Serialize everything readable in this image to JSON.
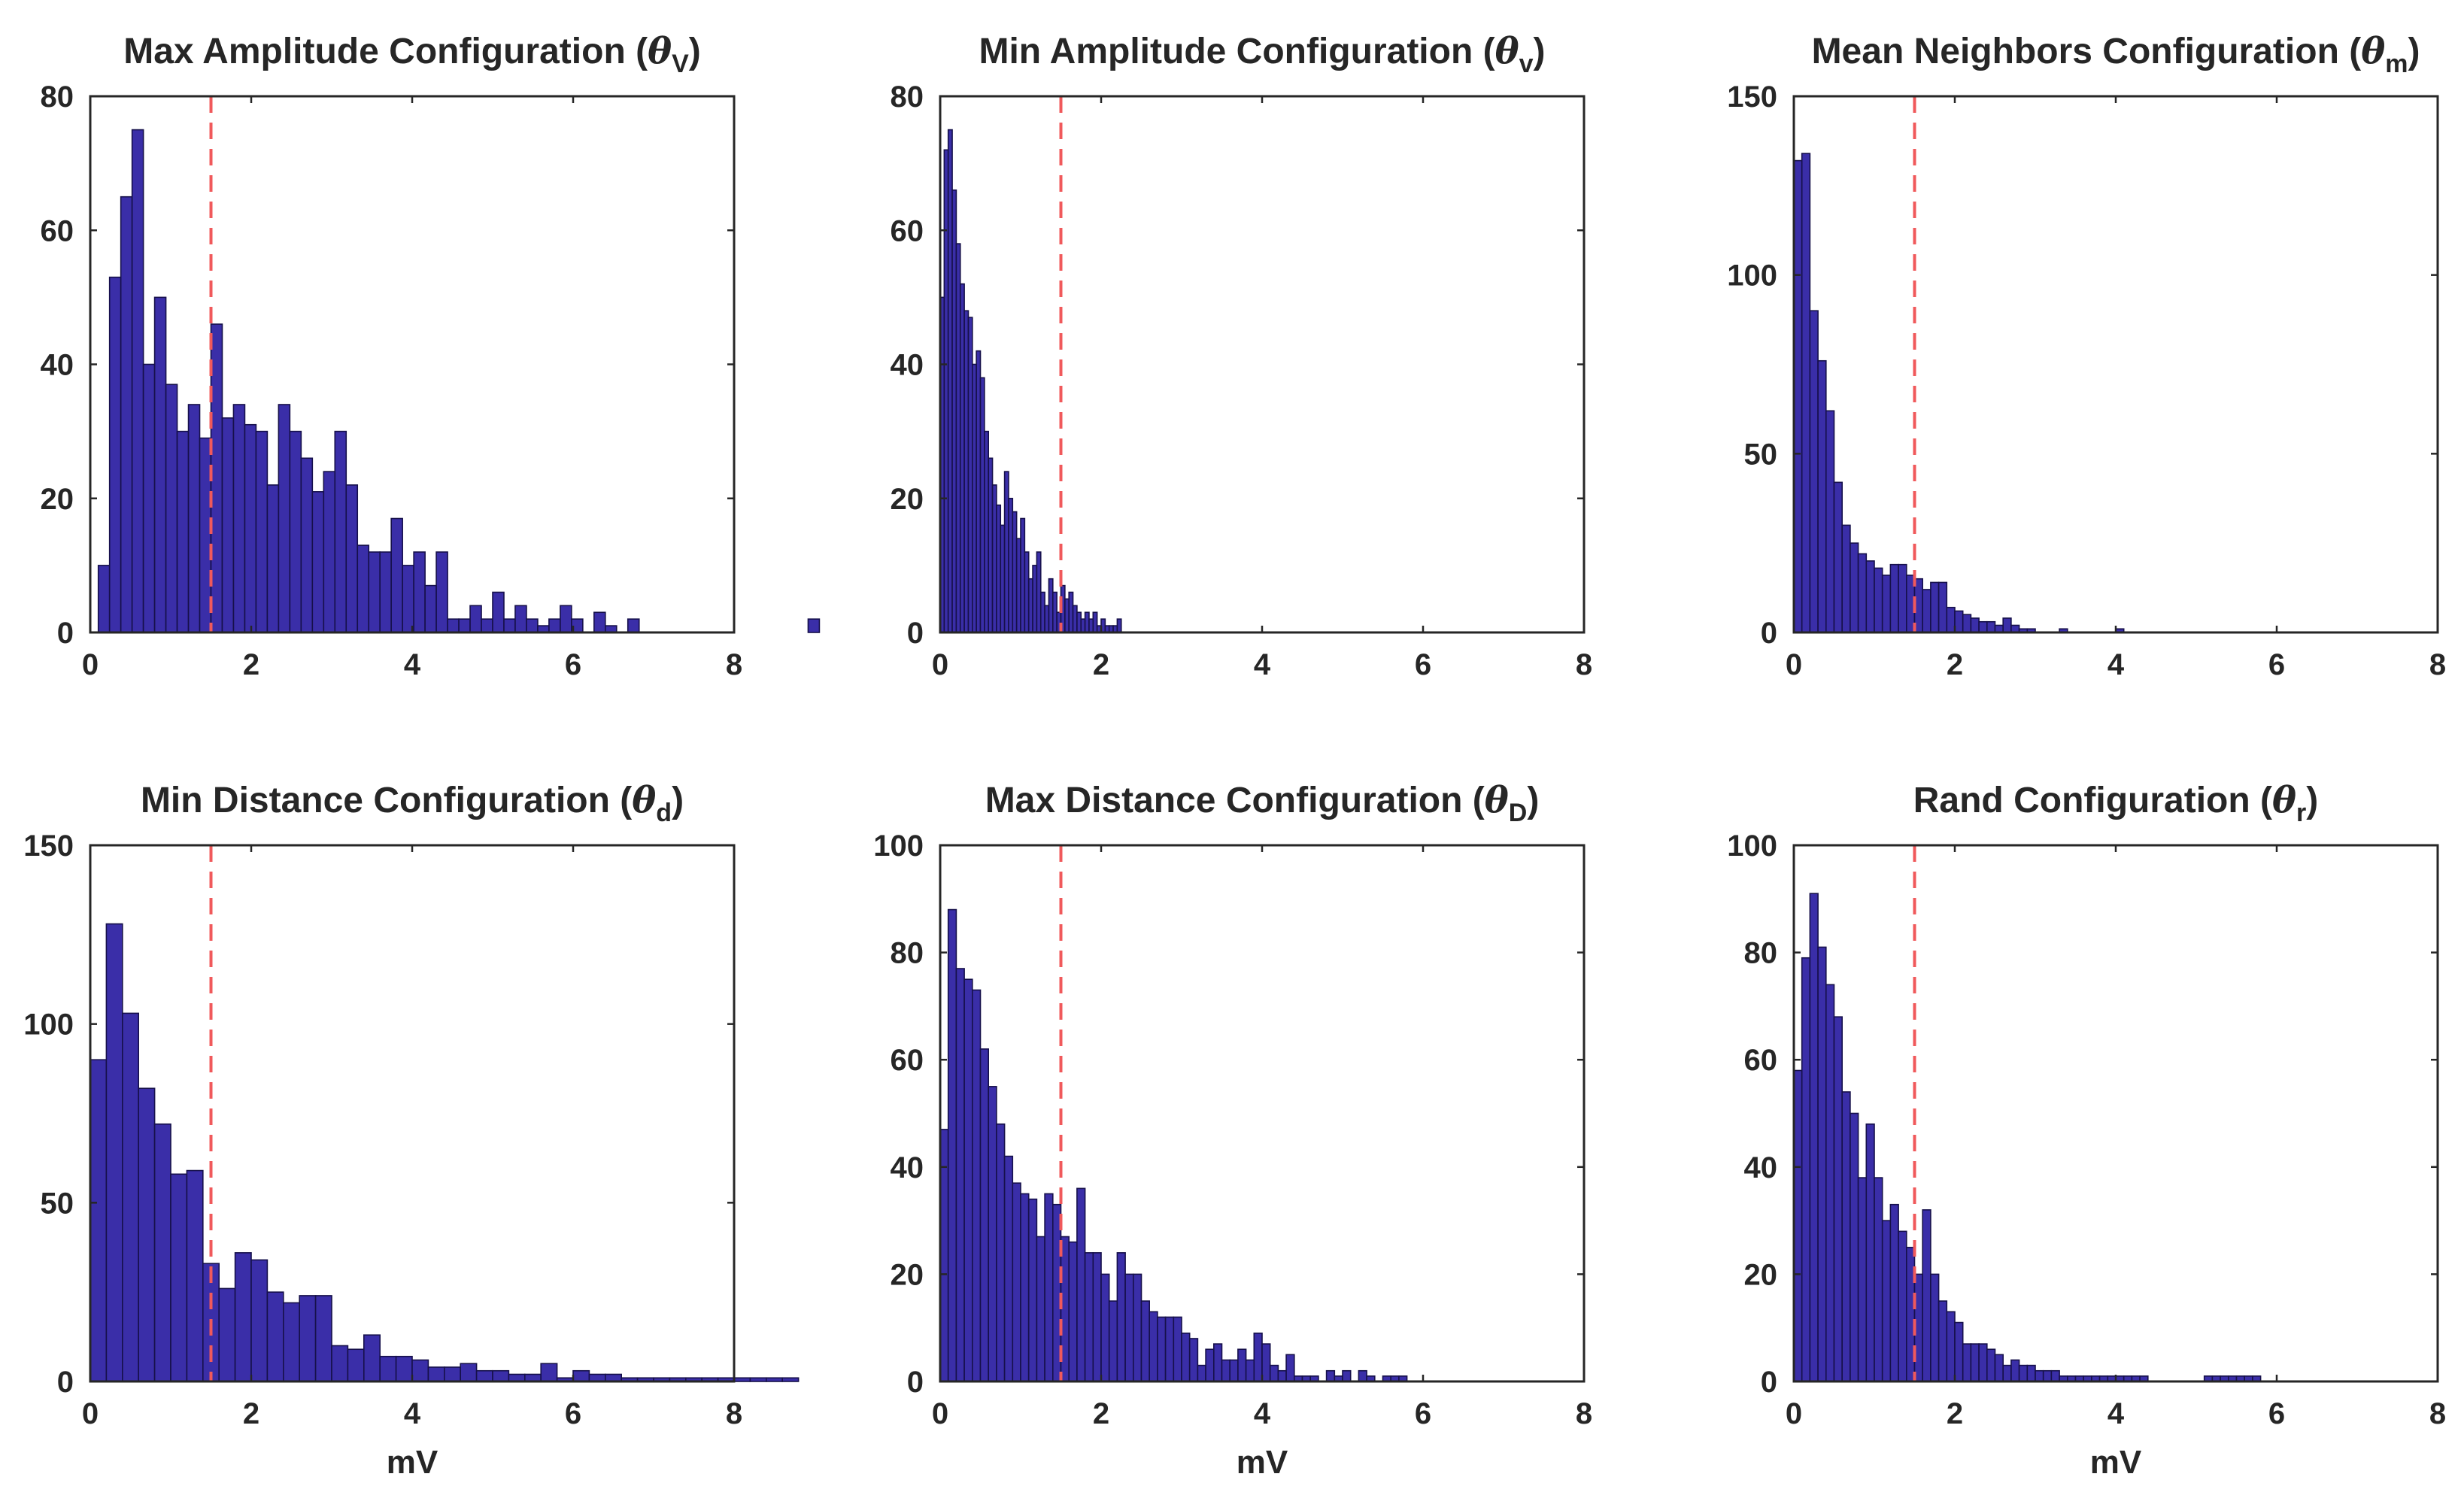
{
  "chart_data": [
    {
      "type": "histogram",
      "title": "Max Amplitude Configuration (θV)",
      "title_main": "Max Amplitude Configuration (",
      "title_symbol": "θ",
      "title_sub": "V",
      "title_close": ")",
      "xlabel": "",
      "xlim": [
        0,
        8
      ],
      "ylim": [
        0,
        80
      ],
      "xticks": [
        0,
        2,
        4,
        6,
        8
      ],
      "yticks": [
        0,
        20,
        40,
        60,
        80
      ],
      "threshold_x": 1.5,
      "bin_start": 0.1,
      "bin_width": 0.14,
      "counts": [
        10,
        53,
        65,
        75,
        40,
        50,
        37,
        30,
        34,
        29,
        46,
        32,
        34,
        31,
        30,
        22,
        34,
        30,
        26,
        21,
        24,
        30,
        22,
        13,
        12,
        12,
        17,
        10,
        12,
        7,
        12,
        2,
        2,
        4,
        2,
        6,
        2,
        4,
        2,
        1,
        2,
        4,
        2,
        0,
        3,
        1,
        0,
        2,
        0,
        0,
        0,
        0,
        0,
        0,
        0,
        0,
        0,
        0,
        0,
        0,
        0,
        0,
        0,
        2,
        0,
        0,
        0,
        0,
        0,
        0
      ]
    },
    {
      "type": "histogram",
      "title": "Min Amplitude Configuration (θv)",
      "title_main": "Min Amplitude Configuration (",
      "title_symbol": "θ",
      "title_sub": "v",
      "title_close": ")",
      "xlabel": "",
      "xlim": [
        0,
        8
      ],
      "ylim": [
        0,
        80
      ],
      "xticks": [
        0,
        2,
        4,
        6,
        8
      ],
      "yticks": [
        0,
        20,
        40,
        60,
        80
      ],
      "threshold_x": 1.5,
      "bin_start": 0.0,
      "bin_width": 0.05,
      "counts": [
        50,
        72,
        75,
        66,
        58,
        52,
        48,
        47,
        40,
        42,
        38,
        30,
        26,
        22,
        19,
        16,
        24,
        20,
        18,
        14,
        17,
        12,
        8,
        10,
        12,
        6,
        4,
        8,
        6,
        3,
        7,
        5,
        6,
        4,
        3,
        2,
        3,
        2,
        3,
        1,
        2,
        1,
        1,
        1,
        2
      ]
    },
    {
      "type": "histogram",
      "title": "Mean Neighbors Configuration (θm)",
      "title_main": "Mean Neighbors Configuration (",
      "title_symbol": "θ",
      "title_sub": "m",
      "title_close": ")",
      "xlabel": "",
      "xlim": [
        0,
        8
      ],
      "ylim": [
        0,
        150
      ],
      "xticks": [
        0,
        2,
        4,
        6,
        8
      ],
      "yticks": [
        0,
        50,
        100,
        150
      ],
      "threshold_x": 1.5,
      "bin_start": 0.0,
      "bin_width": 0.1,
      "counts": [
        132,
        134,
        90,
        76,
        62,
        42,
        30,
        25,
        22,
        20,
        18,
        16,
        19,
        19,
        16,
        15,
        12,
        14,
        14,
        7,
        6,
        5,
        4,
        3,
        3,
        2,
        4,
        2,
        1,
        1,
        0,
        0,
        0,
        1,
        0,
        0,
        0,
        0,
        0,
        0,
        1
      ]
    },
    {
      "type": "histogram",
      "title": "Min Distance Configuration (θd)",
      "title_main": "Min Distance Configuration (",
      "title_symbol": "θ",
      "title_sub": "d",
      "title_close": ")",
      "xlabel": "mV",
      "xlim": [
        0,
        8
      ],
      "ylim": [
        0,
        150
      ],
      "xticks": [
        0,
        2,
        4,
        6,
        8
      ],
      "yticks": [
        0,
        50,
        100,
        150
      ],
      "threshold_x": 1.5,
      "bin_start": 0.0,
      "bin_width": 0.2,
      "counts": [
        90,
        128,
        103,
        82,
        72,
        58,
        59,
        33,
        26,
        36,
        34,
        25,
        22,
        24,
        24,
        10,
        9,
        13,
        7,
        7,
        6,
        4,
        4,
        5,
        3,
        3,
        2,
        2,
        5,
        1,
        3,
        2,
        2,
        1,
        1,
        1,
        1,
        1,
        1,
        1,
        1,
        1,
        1,
        1,
        0,
        0,
        0,
        0,
        0,
        0,
        0,
        0,
        0,
        0,
        0,
        0,
        0,
        0,
        0,
        0,
        0,
        0,
        0,
        0,
        0,
        0,
        0,
        0,
        0,
        0,
        0,
        0,
        0,
        0,
        0,
        0,
        0
      ]
    },
    {
      "type": "histogram",
      "title": "Max Distance Configuration (θD)",
      "title_main": "Max Distance Configuration (",
      "title_symbol": "θ",
      "title_sub": "D",
      "title_close": ")",
      "xlabel": "mV",
      "xlim": [
        0,
        8
      ],
      "ylim": [
        0,
        100
      ],
      "xticks": [
        0,
        2,
        4,
        6,
        8
      ],
      "yticks": [
        0,
        20,
        40,
        60,
        80,
        100
      ],
      "threshold_x": 1.5,
      "bin_start": 0.0,
      "bin_width": 0.1,
      "counts": [
        47,
        88,
        77,
        75,
        73,
        62,
        55,
        48,
        42,
        37,
        35,
        34,
        27,
        35,
        33,
        27,
        26,
        36,
        24,
        24,
        20,
        15,
        24,
        20,
        20,
        15,
        13,
        12,
        12,
        12,
        9,
        8,
        3,
        6,
        7,
        4,
        4,
        6,
        4,
        9,
        7,
        3,
        2,
        5,
        1,
        1,
        1,
        0,
        2,
        1,
        2,
        0,
        2,
        1,
        0,
        1,
        1,
        1,
        0,
        0,
        0,
        0,
        0,
        0,
        0,
        0
      ]
    },
    {
      "type": "histogram",
      "title": "Rand Configuration (θr)",
      "title_main": "Rand Configuration (",
      "title_symbol": "θ",
      "title_sub": "r",
      "title_close": ")",
      "xlabel": "mV",
      "xlim": [
        0,
        8
      ],
      "ylim": [
        0,
        100
      ],
      "xticks": [
        0,
        2,
        4,
        6,
        8
      ],
      "yticks": [
        0,
        20,
        40,
        60,
        80,
        100
      ],
      "threshold_x": 1.5,
      "bin_start": 0.0,
      "bin_width": 0.1,
      "counts": [
        58,
        79,
        91,
        81,
        74,
        68,
        54,
        50,
        38,
        48,
        38,
        30,
        33,
        28,
        25,
        20,
        32,
        20,
        15,
        13,
        11,
        7,
        7,
        7,
        6,
        5,
        3,
        4,
        3,
        3,
        2,
        2,
        2,
        1,
        1,
        1,
        1,
        1,
        1,
        1,
        1,
        1,
        1,
        1,
        0,
        0,
        0,
        0,
        0,
        0,
        0,
        1,
        1,
        1,
        1,
        1,
        1,
        1,
        0,
        0,
        0,
        0,
        0,
        0,
        0,
        0,
        0,
        0,
        0,
        0,
        0,
        0,
        0,
        0,
        0,
        0
      ]
    }
  ]
}
